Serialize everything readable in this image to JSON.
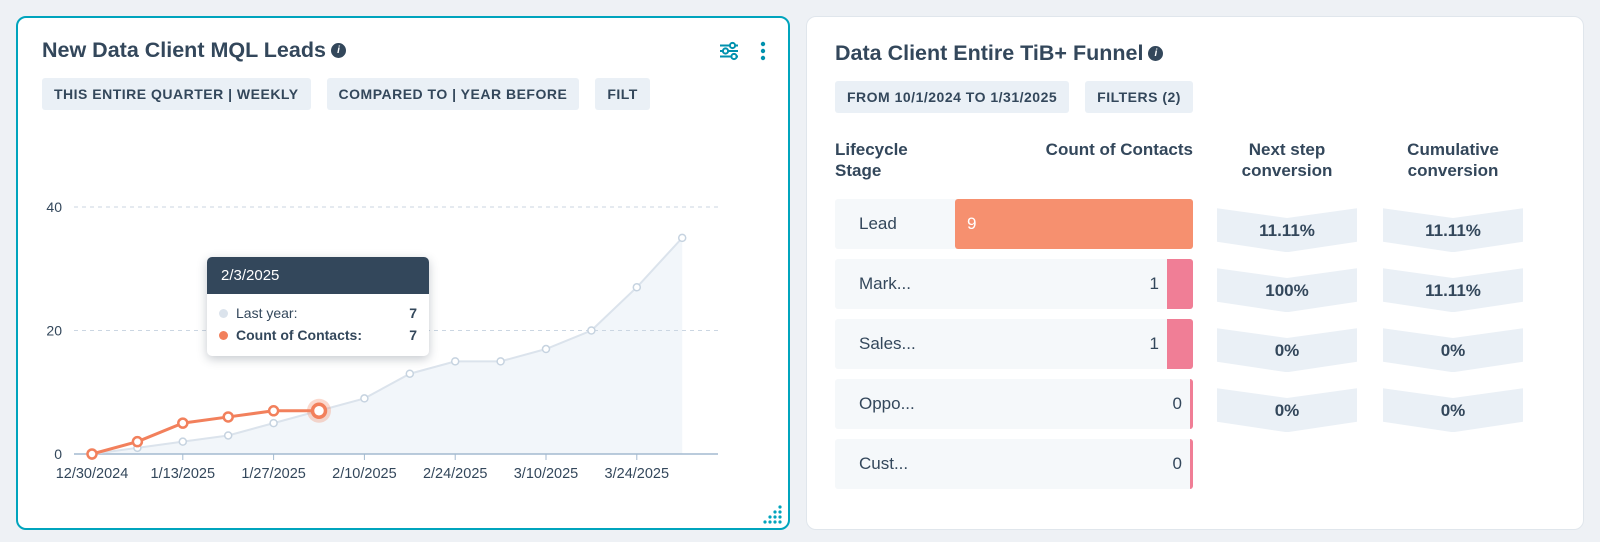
{
  "colors": {
    "accent_teal": "#00a4bd",
    "icon_teal": "#0091ae",
    "navy_text": "#33475b",
    "chip_bg": "#eaf0f6",
    "row_bg": "#f5f8fa",
    "orange": "#f2805c",
    "pink": "#f07e96",
    "gray_line": "#dbe3ec",
    "axis": "#a3bad0",
    "grid": "#cbd6e2"
  },
  "icons": {
    "left_card_actions": [
      "filter-settings-icon",
      "kebab-menu-icon"
    ],
    "title_info": "info-icon",
    "resize": "resize-handle-dots"
  },
  "left_card": {
    "title": "New Data Client MQL Leads",
    "badges": [
      "THIS ENTIRE QUARTER | WEEKLY",
      "COMPARED TO | YEAR BEFORE",
      "FILT"
    ],
    "tooltip": {
      "date": "2/3/2025",
      "rows": [
        {
          "label": "Last year:",
          "value": "7",
          "color": "#dbe3ec",
          "bold": false
        },
        {
          "label": "Count of Contacts:",
          "value": "7",
          "color": "#f2805c",
          "bold": true
        }
      ]
    }
  },
  "right_card": {
    "title": "Data Client Entire TiB+ Funnel",
    "badges": [
      "FROM 10/1/2024 TO 1/31/2025",
      "FILTERS (2)"
    ]
  },
  "chart_data": [
    {
      "type": "line",
      "title": "New Data Client MQL Leads",
      "x_labels": [
        "12/30/2024",
        "1/13/2025",
        "1/27/2025",
        "2/10/2025",
        "2/24/2025",
        "3/10/2025",
        "3/24/2025"
      ],
      "x_weekly": [
        "12/30/2024",
        "1/6/2025",
        "1/13/2025",
        "1/20/2025",
        "1/27/2025",
        "2/3/2025",
        "2/10/2025",
        "2/17/2025",
        "2/24/2025",
        "3/3/2025",
        "3/10/2025",
        "3/17/2025",
        "3/24/2025",
        "3/31/2025"
      ],
      "ylim": [
        0,
        40
      ],
      "yticks": [
        0,
        20,
        40
      ],
      "grid": "dashed-horizontal",
      "series": [
        {
          "name": "Last year",
          "color": "#dbe3ec",
          "marker_stroke": "#c6d3e0",
          "values": [
            0,
            1,
            2,
            3,
            5,
            7,
            9,
            13,
            15,
            15,
            17,
            20,
            27,
            35
          ]
        },
        {
          "name": "Count of Contacts",
          "color": "#f2805c",
          "values": [
            0,
            2,
            5,
            6,
            7,
            7
          ],
          "highlight_index": 5
        }
      ],
      "highlight": {
        "date": "2/3/2025",
        "last_year": 7,
        "count_of_contacts": 7
      }
    },
    {
      "type": "table",
      "title": "Data Client Entire TiB+ Funnel",
      "columns": [
        "Lifecycle Stage",
        "Count of Contacts",
        "Next step conversion",
        "Cumulative conversion"
      ],
      "max_count": 9,
      "rows": [
        {
          "stage": "Lead",
          "count": "9",
          "bar_value": 9,
          "bar_color": "#f6906f",
          "next_conversion": "11.11%",
          "cumulative_conversion": "11.11%"
        },
        {
          "stage": "Mark...",
          "count": "1",
          "bar_value": 1,
          "bar_color": "#f07e96",
          "next_conversion": "100%",
          "cumulative_conversion": "11.11%"
        },
        {
          "stage": "Sales...",
          "count": "1",
          "bar_value": 1,
          "bar_color": "#f07e96",
          "next_conversion": "0%",
          "cumulative_conversion": "0%"
        },
        {
          "stage": "Oppo...",
          "count": "0",
          "bar_value": 0,
          "bar_color": "#f07e96",
          "next_conversion": "0%",
          "cumulative_conversion": "0%"
        },
        {
          "stage": "Cust...",
          "count": "0",
          "bar_value": 0,
          "bar_color": "#f07e96",
          "next_conversion": "",
          "cumulative_conversion": ""
        }
      ]
    }
  ]
}
